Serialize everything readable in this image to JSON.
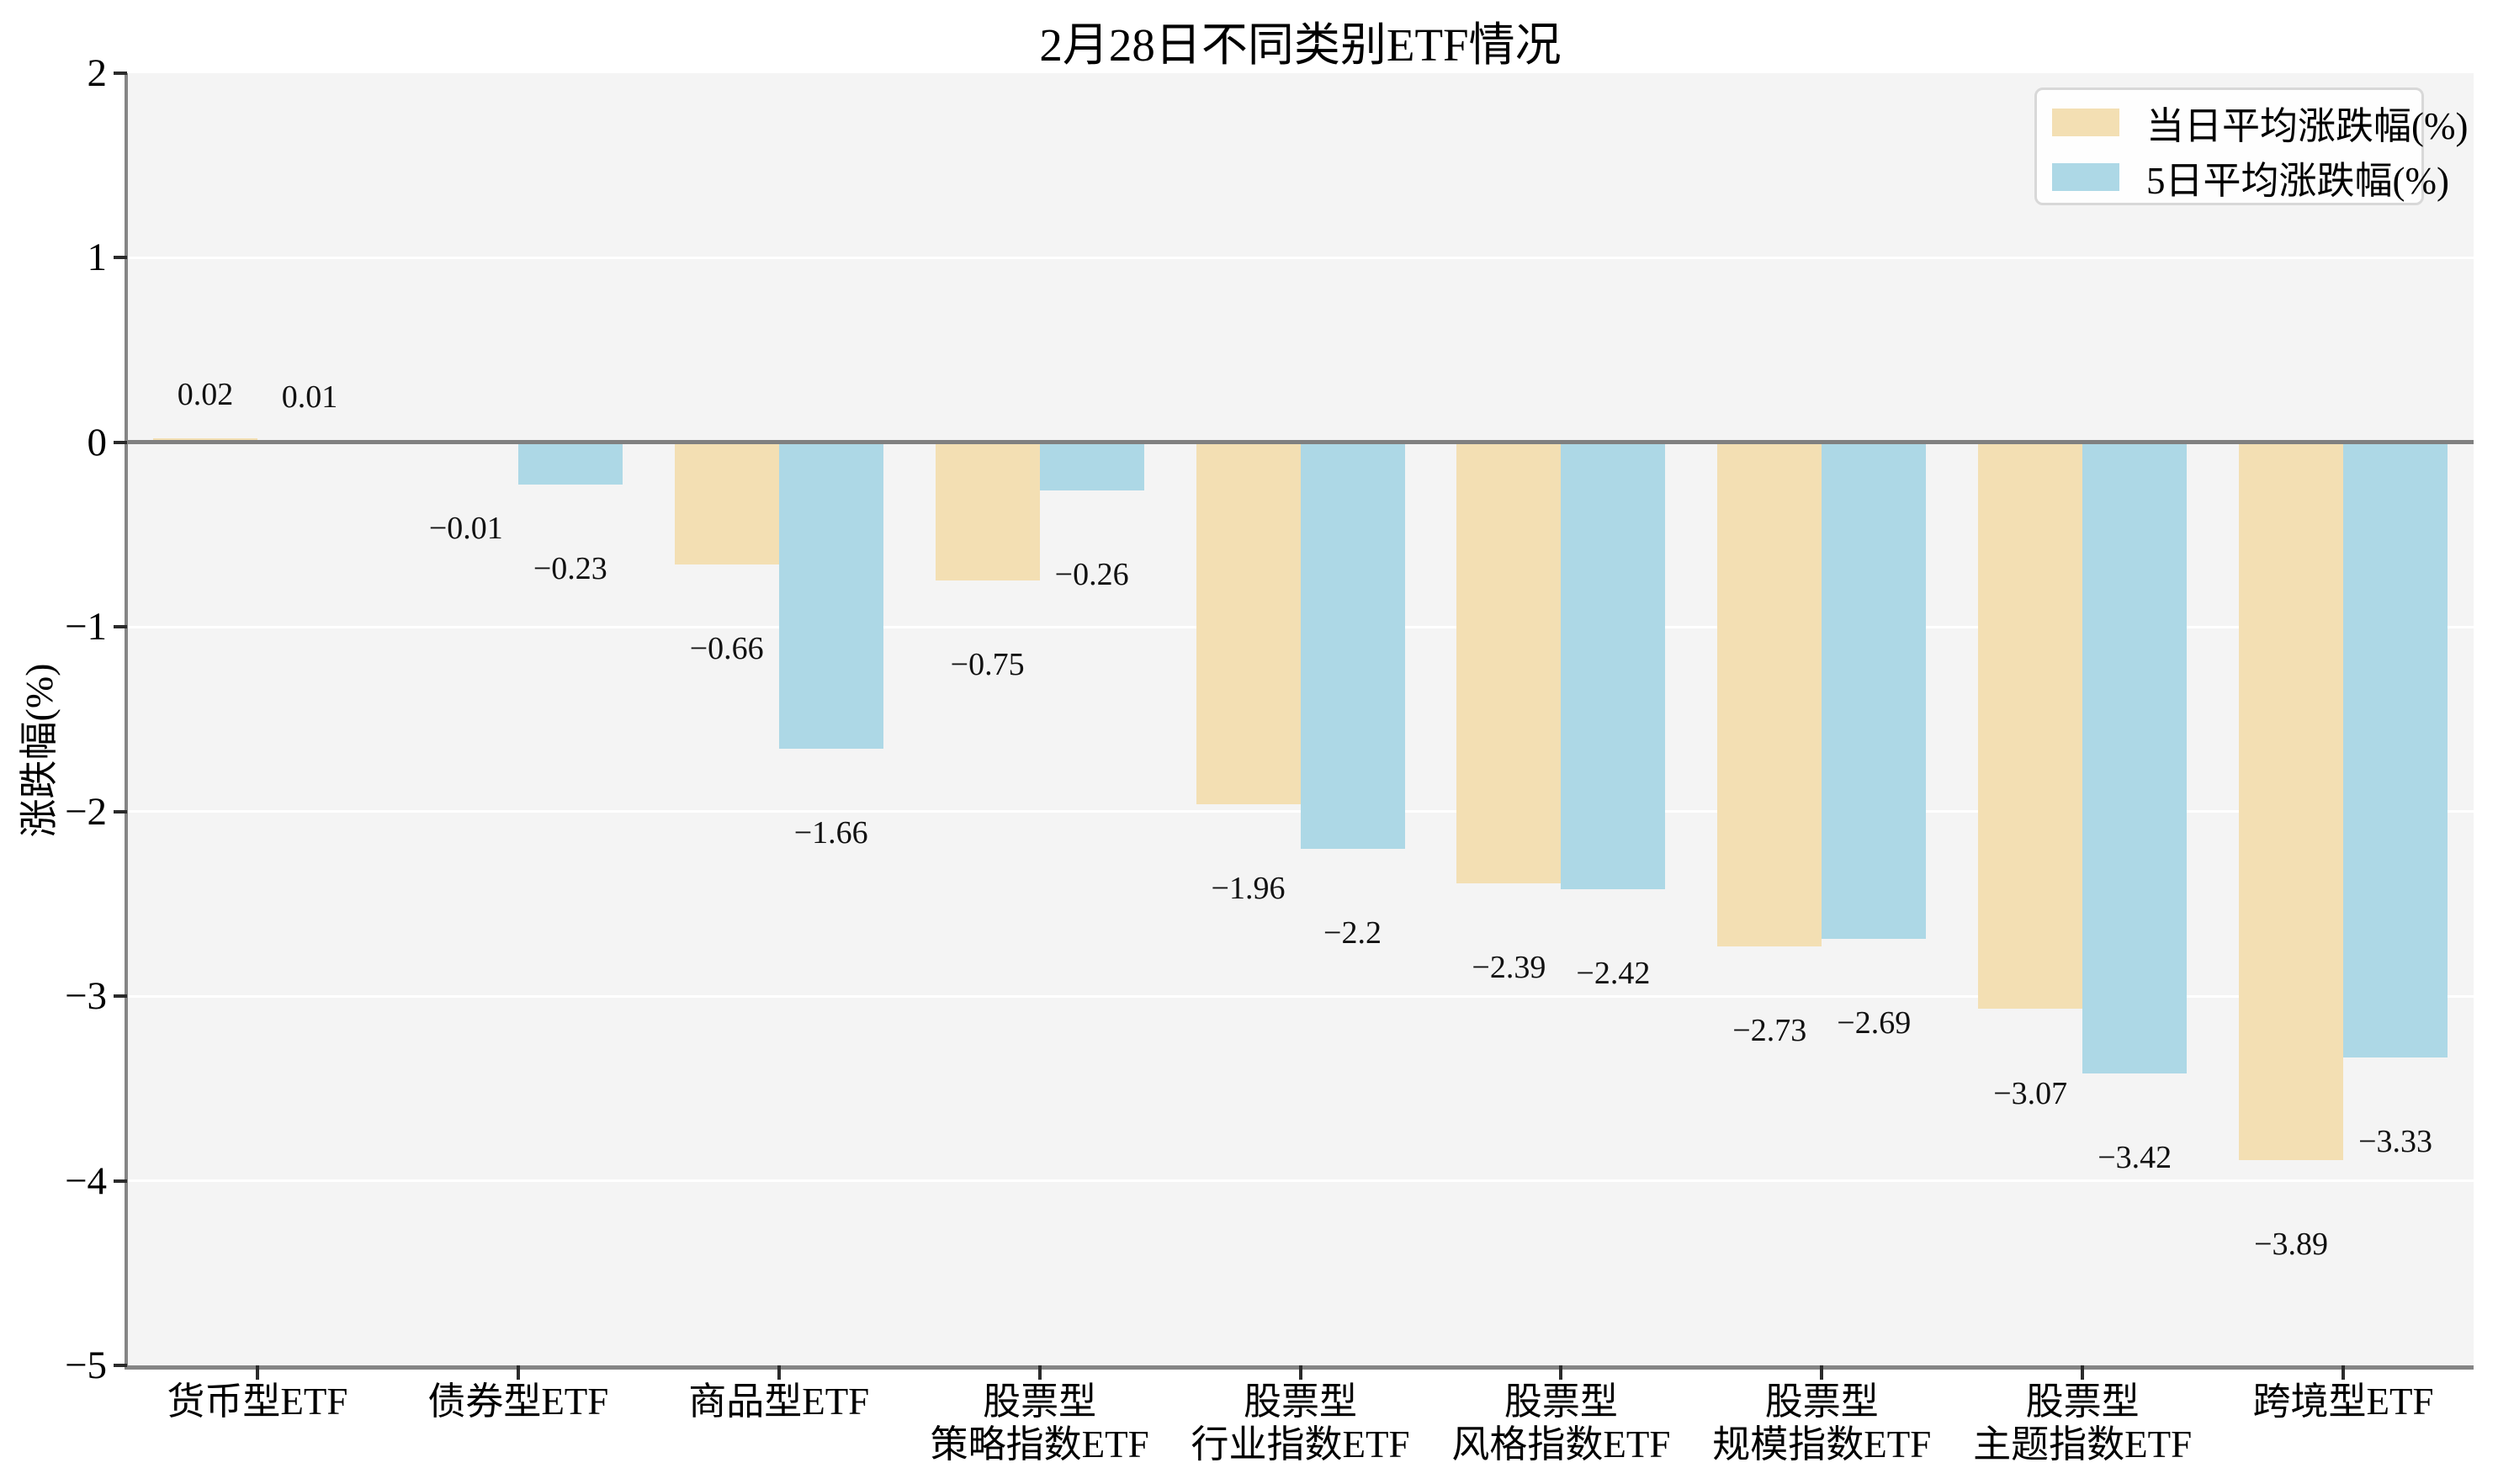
{
  "chart_data": {
    "type": "bar",
    "title": "2月28日不同类别ETF情况",
    "xlabel": "",
    "ylabel": "涨跌幅(%)",
    "ylim": [
      -5,
      2
    ],
    "grid": "horizontal white gridlines on light-gray panel",
    "legend_position": "upper right",
    "zero_line": true,
    "categories": [
      "货币型ETF",
      "债券型ETF",
      "商品型ETF",
      "股票型\n策略指数ETF",
      "股票型\n行业指数ETF",
      "股票型\n风格指数ETF",
      "股票型\n规模指数ETF",
      "股票型\n主题指数ETF",
      "跨境型ETF"
    ],
    "yticks": [
      2,
      1,
      0,
      -1,
      -2,
      -3,
      -4,
      -5
    ],
    "ytick_labels": [
      "2",
      "1",
      "0",
      "−1",
      "−2",
      "−3",
      "−4",
      "−5"
    ],
    "series": [
      {
        "name": "当日平均涨跌幅(%)",
        "color": "#f3dfb3",
        "values": [
          0.02,
          -0.01,
          -0.66,
          -0.75,
          -1.96,
          -2.39,
          -2.73,
          -3.07,
          -3.89
        ],
        "labels": [
          "0.02",
          "−0.01",
          "−0.66",
          "−0.75",
          "−1.96",
          "−2.39",
          "−2.73",
          "−3.07",
          "−3.89"
        ]
      },
      {
        "name": "5日平均涨跌幅(%)",
        "color": "#add8e6",
        "values": [
          0.01,
          -0.23,
          -1.66,
          -0.26,
          -2.2,
          -2.42,
          -2.69,
          -3.42,
          -3.33
        ],
        "labels": [
          "0.01",
          "−0.23",
          "−1.66",
          "−0.26",
          "−2.2",
          "−2.42",
          "−2.69",
          "−3.42",
          "−3.33"
        ]
      }
    ],
    "colors": {
      "figure_background": "#ffffff",
      "plot_background": "#f4f4f4",
      "gridline": "#ffffff",
      "zero_line": "#808080",
      "axis_spine": "#858585",
      "tick": "#2b2b2b",
      "text": "#000000"
    }
  }
}
